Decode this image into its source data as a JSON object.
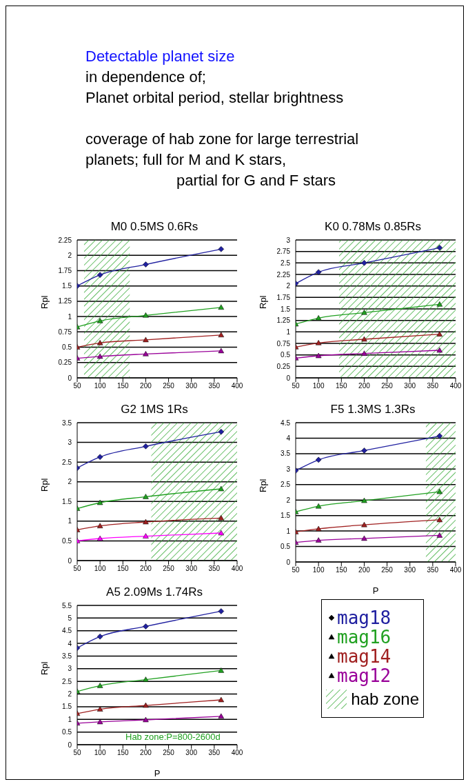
{
  "chart_data": [
    {
      "type": "other",
      "title": "Detectable planet size",
      "annotations": [
        "in dependence of;",
        "Planet orbital period, stellar brightness",
        "coverage of hab zone for  large terrestrial",
        "planets;    full for M and K stars,",
        "partial for G and F stars"
      ]
    },
    {
      "type": "line",
      "title": "M0 0.5MS 0.6Rs",
      "ylabel": "Rpl",
      "x": [
        50,
        100,
        200,
        365
      ],
      "xlim": [
        50,
        400
      ],
      "xticks": [
        50,
        100,
        150,
        200,
        250,
        300,
        350,
        400
      ],
      "ylim": [
        0,
        2.25
      ],
      "yticks": [
        0,
        0.25,
        0.5,
        0.75,
        1,
        1.25,
        1.5,
        1.75,
        2,
        2.25
      ],
      "grid": "y",
      "line_style": "solid",
      "series": [
        {
          "color": "#2020a0",
          "marker": "diamond",
          "values": [
            1.5,
            1.68,
            1.85,
            2.1
          ]
        },
        {
          "color": "#20a020",
          "marker": "triangle",
          "values": [
            0.83,
            0.93,
            1.02,
            1.15
          ]
        },
        {
          "color": "#a02020",
          "marker": "triangle",
          "values": [
            0.5,
            0.57,
            0.62,
            0.7
          ]
        },
        {
          "color": "#990099",
          "marker": "triangle",
          "values": [
            0.32,
            0.35,
            0.39,
            0.44
          ]
        }
      ],
      "bands": [
        {
          "axis": "x",
          "from": 65,
          "to": 165,
          "label": "hab zone",
          "color": "#33aa33"
        }
      ]
    },
    {
      "type": "line",
      "title": "K0 0.78Ms 0.85Rs",
      "ylabel": "Rpl",
      "x": [
        50,
        100,
        200,
        365
      ],
      "xlim": [
        50,
        400
      ],
      "xticks": [
        50,
        100,
        150,
        200,
        250,
        300,
        350,
        400
      ],
      "ylim": [
        0,
        3
      ],
      "yticks": [
        0,
        0.25,
        0.5,
        0.75,
        1,
        1.25,
        1.5,
        1.75,
        2,
        2.25,
        2.5,
        2.75,
        3
      ],
      "grid": "y",
      "line_style": "solid",
      "series": [
        {
          "color": "#2020a0",
          "marker": "diamond",
          "values": [
            2.05,
            2.3,
            2.5,
            2.83
          ]
        },
        {
          "color": "#20a020",
          "marker": "triangle",
          "values": [
            1.17,
            1.3,
            1.42,
            1.6
          ]
        },
        {
          "color": "#a02020",
          "marker": "triangle",
          "values": [
            0.67,
            0.76,
            0.84,
            0.95
          ]
        },
        {
          "color": "#990099",
          "marker": "triangle",
          "values": [
            0.43,
            0.48,
            0.53,
            0.6
          ]
        }
      ],
      "bands": [
        {
          "axis": "x",
          "from": 145,
          "to": 400,
          "color": "#33aa33"
        }
      ]
    },
    {
      "type": "line",
      "title": "G2 1MS 1Rs",
      "ylabel": "Rpl",
      "x": [
        50,
        100,
        200,
        365
      ],
      "xlim": [
        50,
        400
      ],
      "xticks": [
        50,
        100,
        150,
        200,
        250,
        300,
        350,
        400
      ],
      "ylim": [
        0,
        3.5
      ],
      "yticks": [
        0,
        0.5,
        1,
        1.5,
        2,
        2.5,
        3,
        3.5
      ],
      "grid": "y",
      "line_style": "solid",
      "series": [
        {
          "color": "#2020a0",
          "marker": "diamond",
          "values": [
            2.35,
            2.63,
            2.9,
            3.27
          ]
        },
        {
          "color": "#20a020",
          "marker": "triangle",
          "values": [
            1.32,
            1.47,
            1.62,
            1.82
          ]
        },
        {
          "color": "#a02020",
          "marker": "triangle",
          "values": [
            0.78,
            0.88,
            0.98,
            1.08
          ]
        },
        {
          "color": "#ff00ff",
          "marker": "triangle",
          "values": [
            0.5,
            0.56,
            0.62,
            0.7
          ]
        }
      ],
      "bands": [
        {
          "axis": "x",
          "from": 212,
          "to": 400,
          "color": "#33aa33"
        }
      ]
    },
    {
      "type": "line",
      "title": "F5 1.3MS 1.3Rs",
      "xlabel": "P",
      "ylabel": "Rpl",
      "x": [
        50,
        100,
        200,
        365
      ],
      "xlim": [
        50,
        400
      ],
      "xticks": [
        50,
        100,
        150,
        200,
        250,
        300,
        350,
        400
      ],
      "ylim": [
        0,
        4.5
      ],
      "yticks": [
        0,
        0.5,
        1,
        1.5,
        2,
        2.5,
        3,
        3.5,
        4,
        4.5
      ],
      "grid": "y",
      "line_style": "solid",
      "series": [
        {
          "color": "#2020a0",
          "marker": "diamond",
          "values": [
            2.95,
            3.3,
            3.6,
            4.07
          ]
        },
        {
          "color": "#20a020",
          "marker": "triangle",
          "values": [
            1.62,
            1.8,
            1.98,
            2.27
          ]
        },
        {
          "color": "#a02020",
          "marker": "triangle",
          "values": [
            0.97,
            1.07,
            1.2,
            1.36
          ]
        },
        {
          "color": "#990099",
          "marker": "triangle",
          "values": [
            0.63,
            0.7,
            0.76,
            0.86
          ]
        }
      ],
      "bands": [
        {
          "axis": "x",
          "from": 335,
          "to": 400,
          "color": "#33aa33"
        }
      ]
    },
    {
      "type": "line",
      "title": "A5 2.09Ms 1.74Rs",
      "xlabel": "P",
      "ylabel": "Rpl",
      "x": [
        50,
        100,
        200,
        365
      ],
      "xlim": [
        50,
        400
      ],
      "xticks": [
        50,
        100,
        150,
        200,
        250,
        300,
        350,
        400
      ],
      "ylim": [
        0,
        5.5
      ],
      "yticks": [
        0,
        0.5,
        1,
        1.5,
        2,
        2.5,
        3,
        3.5,
        4,
        4.5,
        5,
        5.5
      ],
      "grid": "y",
      "line_style": "solid",
      "legend": "right",
      "annotations": [
        "Hab zone:P=800-2600d"
      ],
      "series": [
        {
          "name": "mag18",
          "color": "#2020a0",
          "marker": "diamond",
          "values": [
            3.82,
            4.27,
            4.67,
            5.27
          ]
        },
        {
          "name": "mag16",
          "color": "#20a020",
          "marker": "triangle",
          "values": [
            2.1,
            2.33,
            2.57,
            2.93
          ]
        },
        {
          "name": "mag14",
          "color": "#a02020",
          "marker": "triangle",
          "values": [
            1.23,
            1.4,
            1.55,
            1.77
          ]
        },
        {
          "name": "mag12",
          "color": "#990099",
          "marker": "triangle",
          "values": [
            0.85,
            0.9,
            0.98,
            1.12
          ]
        }
      ]
    }
  ]
}
